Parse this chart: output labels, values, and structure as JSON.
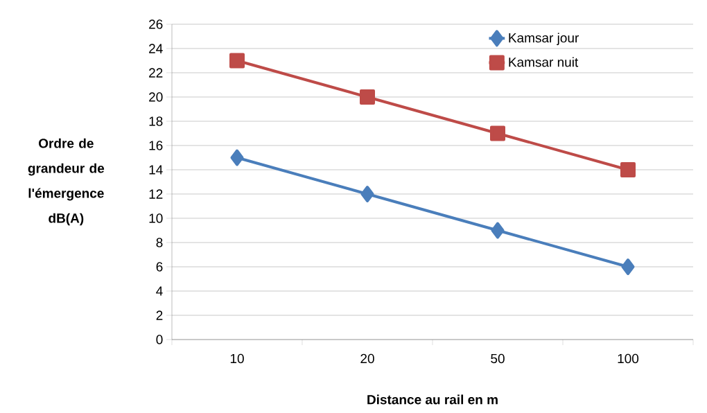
{
  "chart_data": {
    "type": "line",
    "xlabel": "Distance au rail en m",
    "ylabel": "Ordre de grandeur de l'émergence dB(A)",
    "categories": [
      "10",
      "20",
      "50",
      "100"
    ],
    "ylim": [
      0,
      26
    ],
    "yticks": [
      0,
      2,
      4,
      6,
      8,
      10,
      12,
      14,
      16,
      18,
      20,
      22,
      24,
      26
    ],
    "grid": "y",
    "legend": "top right",
    "line_style": "solid",
    "series": [
      {
        "name": "Kamsar jour",
        "color": "#4a7ebb",
        "marker": "diamond",
        "values": [
          15,
          12,
          9,
          6
        ]
      },
      {
        "name": "Kamsar nuit",
        "color": "#be4b48",
        "marker": "square",
        "values": [
          23,
          20,
          17,
          14
        ]
      }
    ]
  }
}
